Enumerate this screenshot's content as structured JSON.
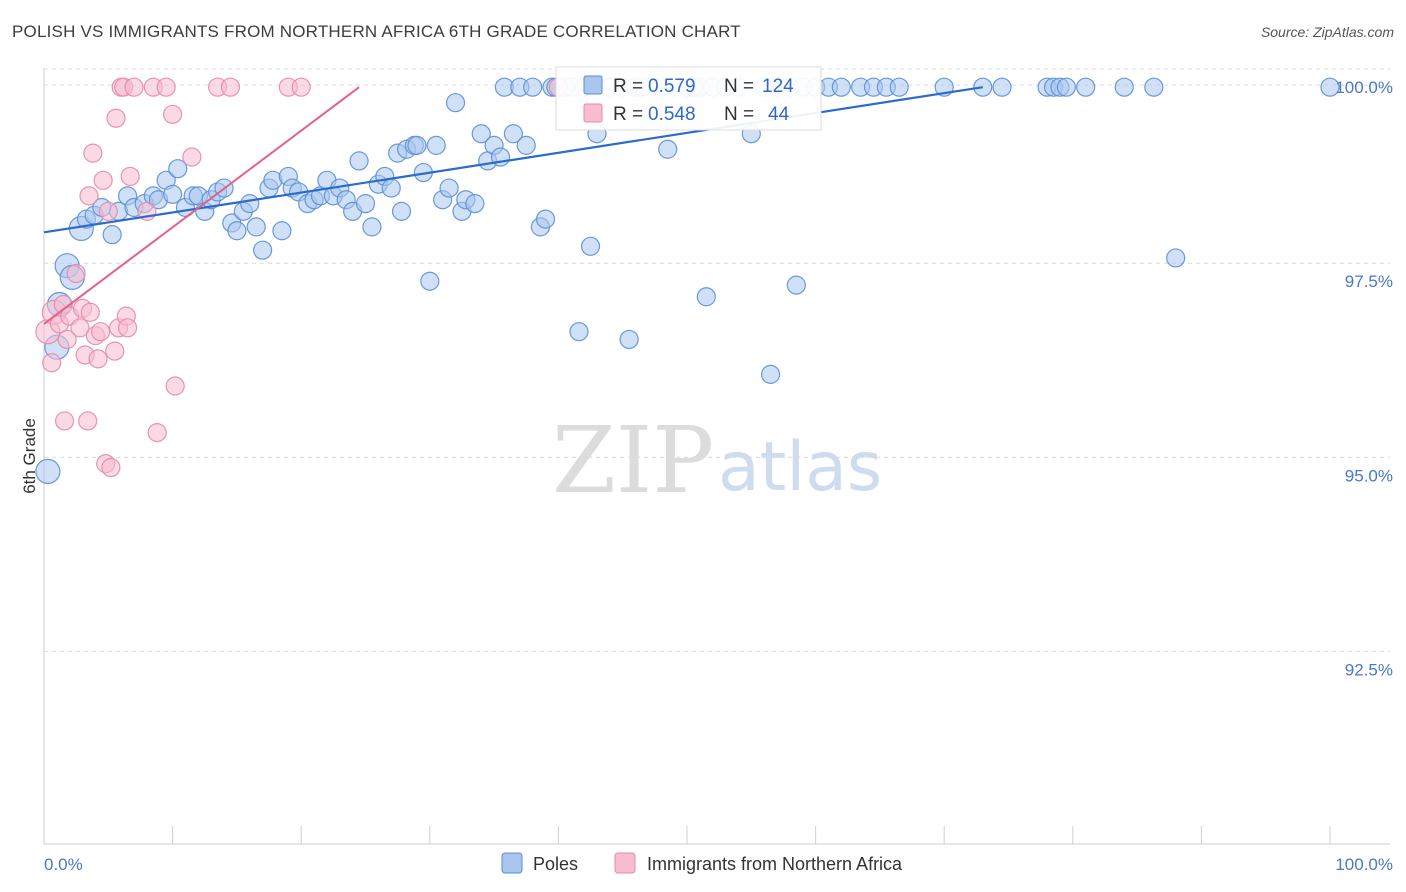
{
  "title": "POLISH VS IMMIGRANTS FROM NORTHERN AFRICA 6TH GRADE CORRELATION CHART",
  "source": "Source: ZipAtlas.com",
  "watermark": {
    "zip": "ZIP",
    "atlas": "atlas"
  },
  "colors": {
    "poles_fill": "#a9c6ef",
    "poles_stroke": "#5b8fd6",
    "poles_line": "#2a6ccb",
    "imm_fill": "#f7bcd0",
    "imm_stroke": "#e58aa8",
    "imm_line": "#e2618c",
    "grid": "#d9d9d9",
    "axis_text": "#4a78c8"
  },
  "legend": {
    "r_label": "R =",
    "n_label": "N =",
    "poles": {
      "r": "0.579",
      "n": "124"
    },
    "immigrants": {
      "r": "0.548",
      "n": "44"
    }
  },
  "bottom_legend": {
    "poles": "Poles",
    "immigrants": "Immigrants from Northern Africa"
  },
  "chart_data": {
    "type": "scatter",
    "title": "POLISH VS IMMIGRANTS FROM NORTHERN AFRICA 6TH GRADE CORRELATION CHART",
    "xlabel": "",
    "ylabel": "6th Grade",
    "xlim": [
      0,
      100
    ],
    "ylim": [
      90.25,
      100.35
    ],
    "x_tick_labels": [
      "0.0%",
      "100.0%"
    ],
    "y_ticks": [
      92.5,
      95.0,
      97.5,
      100.0
    ],
    "y_tick_labels": [
      "92.5%",
      "95.0%",
      "97.5%",
      "100.0%"
    ],
    "series": [
      {
        "name": "Poles",
        "r": 0.579,
        "n": 124,
        "trend": {
          "x": [
            0,
            73
          ],
          "y": [
            98.13,
            100.0
          ]
        },
        "points": [
          {
            "x": 0.3,
            "y": 95.05,
            "s": 2
          },
          {
            "x": 1.0,
            "y": 96.65,
            "s": 2
          },
          {
            "x": 1.2,
            "y": 97.2,
            "s": 2
          },
          {
            "x": 1.8,
            "y": 97.7,
            "s": 2
          },
          {
            "x": 2.2,
            "y": 97.55,
            "s": 2
          },
          {
            "x": 2.9,
            "y": 98.18,
            "s": 2
          },
          {
            "x": 3.3,
            "y": 98.3,
            "s": 1
          },
          {
            "x": 3.9,
            "y": 98.35,
            "s": 1
          },
          {
            "x": 4.5,
            "y": 98.45,
            "s": 1
          },
          {
            "x": 5.3,
            "y": 98.1,
            "s": 1
          },
          {
            "x": 5.8,
            "y": 98.4,
            "s": 1
          },
          {
            "x": 6.5,
            "y": 98.6,
            "s": 1
          },
          {
            "x": 7.0,
            "y": 98.45,
            "s": 1
          },
          {
            "x": 7.8,
            "y": 98.5,
            "s": 1
          },
          {
            "x": 8.5,
            "y": 98.6,
            "s": 1
          },
          {
            "x": 8.9,
            "y": 98.55,
            "s": 1
          },
          {
            "x": 9.5,
            "y": 98.8,
            "s": 1
          },
          {
            "x": 10.0,
            "y": 98.62,
            "s": 1
          },
          {
            "x": 10.4,
            "y": 98.95,
            "s": 1
          },
          {
            "x": 11.0,
            "y": 98.45,
            "s": 1
          },
          {
            "x": 11.6,
            "y": 98.6,
            "s": 1
          },
          {
            "x": 12.0,
            "y": 98.6,
            "s": 1
          },
          {
            "x": 12.5,
            "y": 98.4,
            "s": 1
          },
          {
            "x": 13.0,
            "y": 98.55,
            "s": 1
          },
          {
            "x": 13.5,
            "y": 98.65,
            "s": 1
          },
          {
            "x": 14.0,
            "y": 98.7,
            "s": 1
          },
          {
            "x": 14.6,
            "y": 98.25,
            "s": 1
          },
          {
            "x": 15.0,
            "y": 98.15,
            "s": 1
          },
          {
            "x": 15.5,
            "y": 98.4,
            "s": 1
          },
          {
            "x": 16.0,
            "y": 98.5,
            "s": 1
          },
          {
            "x": 16.5,
            "y": 98.2,
            "s": 1
          },
          {
            "x": 17.0,
            "y": 97.9,
            "s": 1
          },
          {
            "x": 17.5,
            "y": 98.7,
            "s": 1
          },
          {
            "x": 17.8,
            "y": 98.8,
            "s": 1
          },
          {
            "x": 18.5,
            "y": 98.15,
            "s": 1
          },
          {
            "x": 19.0,
            "y": 98.85,
            "s": 1
          },
          {
            "x": 19.3,
            "y": 98.7,
            "s": 1
          },
          {
            "x": 19.8,
            "y": 98.65,
            "s": 1
          },
          {
            "x": 20.5,
            "y": 98.5,
            "s": 1
          },
          {
            "x": 21.0,
            "y": 98.55,
            "s": 1
          },
          {
            "x": 21.5,
            "y": 98.6,
            "s": 1
          },
          {
            "x": 22.0,
            "y": 98.8,
            "s": 1
          },
          {
            "x": 22.5,
            "y": 98.6,
            "s": 1
          },
          {
            "x": 23.0,
            "y": 98.7,
            "s": 1
          },
          {
            "x": 23.5,
            "y": 98.55,
            "s": 1
          },
          {
            "x": 24.0,
            "y": 98.4,
            "s": 1
          },
          {
            "x": 24.5,
            "y": 99.05,
            "s": 1
          },
          {
            "x": 25.0,
            "y": 98.5,
            "s": 1
          },
          {
            "x": 25.5,
            "y": 98.2,
            "s": 1
          },
          {
            "x": 26.0,
            "y": 98.75,
            "s": 1
          },
          {
            "x": 26.5,
            "y": 98.85,
            "s": 1
          },
          {
            "x": 27.0,
            "y": 98.7,
            "s": 1
          },
          {
            "x": 27.5,
            "y": 99.15,
            "s": 1
          },
          {
            "x": 27.8,
            "y": 98.4,
            "s": 1
          },
          {
            "x": 28.2,
            "y": 99.2,
            "s": 1
          },
          {
            "x": 28.8,
            "y": 99.25,
            "s": 1
          },
          {
            "x": 29.0,
            "y": 99.25,
            "s": 1
          },
          {
            "x": 29.5,
            "y": 98.9,
            "s": 1
          },
          {
            "x": 30.0,
            "y": 97.5,
            "s": 1
          },
          {
            "x": 30.5,
            "y": 99.25,
            "s": 1
          },
          {
            "x": 31.0,
            "y": 98.55,
            "s": 1
          },
          {
            "x": 31.5,
            "y": 98.7,
            "s": 1
          },
          {
            "x": 32.0,
            "y": 99.8,
            "s": 1
          },
          {
            "x": 32.5,
            "y": 98.4,
            "s": 1
          },
          {
            "x": 32.8,
            "y": 98.55,
            "s": 1
          },
          {
            "x": 33.5,
            "y": 98.5,
            "s": 1
          },
          {
            "x": 34.0,
            "y": 99.4,
            "s": 1
          },
          {
            "x": 34.5,
            "y": 99.05,
            "s": 1
          },
          {
            "x": 35.0,
            "y": 99.25,
            "s": 1
          },
          {
            "x": 35.5,
            "y": 99.1,
            "s": 1
          },
          {
            "x": 35.8,
            "y": 100.0,
            "s": 1
          },
          {
            "x": 36.5,
            "y": 99.4,
            "s": 1
          },
          {
            "x": 37.0,
            "y": 100.0,
            "s": 1
          },
          {
            "x": 37.5,
            "y": 99.25,
            "s": 1
          },
          {
            "x": 38.0,
            "y": 100.0,
            "s": 1
          },
          {
            "x": 38.6,
            "y": 98.2,
            "s": 1
          },
          {
            "x": 39.0,
            "y": 98.3,
            "s": 1
          },
          {
            "x": 39.5,
            "y": 100.0,
            "s": 1
          },
          {
            "x": 39.8,
            "y": 100.0,
            "s": 1
          },
          {
            "x": 40.5,
            "y": 100.0,
            "s": 1
          },
          {
            "x": 41.0,
            "y": 100.0,
            "s": 1
          },
          {
            "x": 41.6,
            "y": 96.85,
            "s": 1
          },
          {
            "x": 42.0,
            "y": 100.0,
            "s": 1
          },
          {
            "x": 42.5,
            "y": 97.95,
            "s": 1
          },
          {
            "x": 43.0,
            "y": 99.4,
            "s": 1
          },
          {
            "x": 44.0,
            "y": 100.0,
            "s": 1
          },
          {
            "x": 45.0,
            "y": 100.0,
            "s": 1
          },
          {
            "x": 45.5,
            "y": 96.75,
            "s": 1
          },
          {
            "x": 46.0,
            "y": 100.0,
            "s": 1
          },
          {
            "x": 46.5,
            "y": 100.0,
            "s": 1
          },
          {
            "x": 48.0,
            "y": 100.0,
            "s": 1
          },
          {
            "x": 48.5,
            "y": 99.2,
            "s": 1
          },
          {
            "x": 49.0,
            "y": 100.0,
            "s": 1
          },
          {
            "x": 50.0,
            "y": 100.0,
            "s": 1
          },
          {
            "x": 50.5,
            "y": 100.0,
            "s": 1
          },
          {
            "x": 51.0,
            "y": 100.0,
            "s": 1
          },
          {
            "x": 51.5,
            "y": 97.3,
            "s": 1
          },
          {
            "x": 52.0,
            "y": 100.0,
            "s": 1
          },
          {
            "x": 53.0,
            "y": 100.0,
            "s": 1
          },
          {
            "x": 54.0,
            "y": 100.0,
            "s": 1
          },
          {
            "x": 55.0,
            "y": 99.4,
            "s": 1
          },
          {
            "x": 56.0,
            "y": 100.0,
            "s": 1
          },
          {
            "x": 56.5,
            "y": 96.3,
            "s": 1
          },
          {
            "x": 57.0,
            "y": 100.0,
            "s": 1
          },
          {
            "x": 58.0,
            "y": 100.0,
            "s": 1
          },
          {
            "x": 58.5,
            "y": 97.45,
            "s": 1
          },
          {
            "x": 59.0,
            "y": 100.0,
            "s": 1
          },
          {
            "x": 60.0,
            "y": 100.0,
            "s": 1
          },
          {
            "x": 61.0,
            "y": 100.0,
            "s": 1
          },
          {
            "x": 62.0,
            "y": 100.0,
            "s": 1
          },
          {
            "x": 63.5,
            "y": 100.0,
            "s": 1
          },
          {
            "x": 64.5,
            "y": 100.0,
            "s": 1
          },
          {
            "x": 65.5,
            "y": 100.0,
            "s": 1
          },
          {
            "x": 66.5,
            "y": 100.0,
            "s": 1
          },
          {
            "x": 70.0,
            "y": 100.0,
            "s": 1
          },
          {
            "x": 73.0,
            "y": 100.0,
            "s": 1
          },
          {
            "x": 74.5,
            "y": 100.0,
            "s": 1
          },
          {
            "x": 78.0,
            "y": 100.0,
            "s": 1
          },
          {
            "x": 78.5,
            "y": 100.0,
            "s": 1
          },
          {
            "x": 79.0,
            "y": 100.0,
            "s": 1
          },
          {
            "x": 79.5,
            "y": 100.0,
            "s": 1
          },
          {
            "x": 81.0,
            "y": 100.0,
            "s": 1
          },
          {
            "x": 84.0,
            "y": 100.0,
            "s": 1
          },
          {
            "x": 86.3,
            "y": 100.0,
            "s": 1
          },
          {
            "x": 88.0,
            "y": 97.8,
            "s": 1
          },
          {
            "x": 100.0,
            "y": 100.0,
            "s": 1
          }
        ]
      },
      {
        "name": "Immigrants from Northern Africa",
        "r": 0.548,
        "n": 44,
        "trend": {
          "x": [
            0,
            24.5
          ],
          "y": [
            96.95,
            100.0
          ]
        },
        "points": [
          {
            "x": 0.3,
            "y": 96.85,
            "s": 2
          },
          {
            "x": 0.6,
            "y": 96.45,
            "s": 1
          },
          {
            "x": 0.8,
            "y": 97.1,
            "s": 2
          },
          {
            "x": 1.2,
            "y": 96.95,
            "s": 1
          },
          {
            "x": 1.5,
            "y": 97.2,
            "s": 1
          },
          {
            "x": 1.6,
            "y": 95.7,
            "s": 1
          },
          {
            "x": 1.8,
            "y": 96.75,
            "s": 1
          },
          {
            "x": 2.0,
            "y": 97.05,
            "s": 1
          },
          {
            "x": 2.5,
            "y": 97.6,
            "s": 1
          },
          {
            "x": 2.8,
            "y": 96.9,
            "s": 1
          },
          {
            "x": 3.0,
            "y": 97.15,
            "s": 1
          },
          {
            "x": 3.2,
            "y": 96.55,
            "s": 1
          },
          {
            "x": 3.4,
            "y": 95.7,
            "s": 1
          },
          {
            "x": 3.5,
            "y": 98.6,
            "s": 1
          },
          {
            "x": 3.6,
            "y": 97.1,
            "s": 1
          },
          {
            "x": 3.8,
            "y": 99.15,
            "s": 1
          },
          {
            "x": 4.0,
            "y": 96.8,
            "s": 1
          },
          {
            "x": 4.2,
            "y": 96.5,
            "s": 1
          },
          {
            "x": 4.4,
            "y": 96.85,
            "s": 1
          },
          {
            "x": 4.6,
            "y": 98.8,
            "s": 1
          },
          {
            "x": 4.8,
            "y": 95.15,
            "s": 1
          },
          {
            "x": 5.0,
            "y": 98.4,
            "s": 1
          },
          {
            "x": 5.2,
            "y": 95.1,
            "s": 1
          },
          {
            "x": 5.5,
            "y": 96.6,
            "s": 1
          },
          {
            "x": 5.6,
            "y": 99.6,
            "s": 1
          },
          {
            "x": 5.8,
            "y": 96.9,
            "s": 1
          },
          {
            "x": 6.0,
            "y": 100.0,
            "s": 1
          },
          {
            "x": 6.2,
            "y": 100.0,
            "s": 1
          },
          {
            "x": 6.4,
            "y": 97.05,
            "s": 1
          },
          {
            "x": 6.5,
            "y": 96.9,
            "s": 1
          },
          {
            "x": 6.7,
            "y": 98.85,
            "s": 1
          },
          {
            "x": 7.0,
            "y": 100.0,
            "s": 1
          },
          {
            "x": 8.0,
            "y": 98.4,
            "s": 1
          },
          {
            "x": 8.5,
            "y": 100.0,
            "s": 1
          },
          {
            "x": 8.8,
            "y": 95.55,
            "s": 1
          },
          {
            "x": 9.5,
            "y": 100.0,
            "s": 1
          },
          {
            "x": 10.0,
            "y": 99.65,
            "s": 1
          },
          {
            "x": 10.2,
            "y": 96.15,
            "s": 1
          },
          {
            "x": 11.5,
            "y": 99.1,
            "s": 1
          },
          {
            "x": 13.5,
            "y": 100.0,
            "s": 1
          },
          {
            "x": 14.5,
            "y": 100.0,
            "s": 1
          },
          {
            "x": 19.0,
            "y": 100.0,
            "s": 1
          },
          {
            "x": 20.0,
            "y": 100.0,
            "s": 1
          },
          {
            "x": 40.0,
            "y": 100.0,
            "s": 1
          }
        ]
      }
    ]
  }
}
